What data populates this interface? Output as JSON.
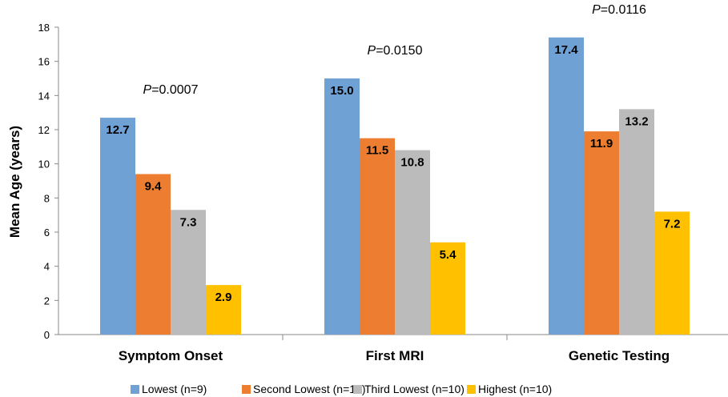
{
  "chart_data": {
    "type": "bar",
    "title": "",
    "xlabel": "",
    "ylabel": "Mean Age (years)",
    "ylim": [
      0,
      18
    ],
    "yticks": [
      0,
      2,
      4,
      6,
      8,
      10,
      12,
      14,
      16,
      18
    ],
    "grid": false,
    "legend_position": "bottom",
    "categories": [
      "Symptom Onset",
      "First MRI",
      "Genetic Testing"
    ],
    "p_values": [
      {
        "label": "P",
        "value": "=0.0007"
      },
      {
        "label": "P",
        "value": "=0.0150"
      },
      {
        "label": "P",
        "value": "=0.0116"
      }
    ],
    "series": [
      {
        "name": "Lowest (n=9)",
        "color": "#70a1d4",
        "values": [
          12.7,
          15.0,
          17.4
        ],
        "labels": [
          "12.7",
          "15.0",
          "17.4"
        ]
      },
      {
        "name": "Second Lowest (n=10)",
        "color": "#ed7d31",
        "values": [
          9.4,
          11.5,
          11.9
        ],
        "labels": [
          "9.4",
          "11.5",
          "11.9"
        ]
      },
      {
        "name": "Third Lowest (n=10)",
        "color": "#bbbbbb",
        "values": [
          7.3,
          10.8,
          13.2
        ],
        "labels": [
          "7.3",
          "10.8",
          "13.2"
        ]
      },
      {
        "name": "Highest (n=10)",
        "color": "#ffc000",
        "values": [
          2.9,
          5.4,
          7.2
        ],
        "labels": [
          "2.9",
          "5.4",
          "7.2"
        ]
      }
    ]
  }
}
